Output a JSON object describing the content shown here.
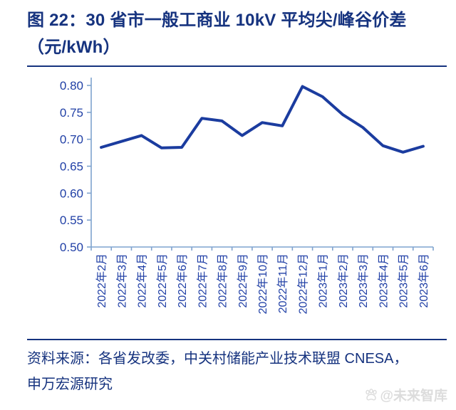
{
  "header": {
    "title_lines": [
      "图 22：30 省市一般工商业 10kV 平均尖/峰谷价差",
      "（元/kWh）"
    ]
  },
  "chart_data": {
    "type": "line",
    "title": "30 省市一般工商业 10kV 平均尖/峰谷价差（元/kWh）",
    "categories": [
      "2022年2月",
      "2022年3月",
      "2022年4月",
      "2022年5月",
      "2022年6月",
      "2022年7月",
      "2022年8月",
      "2022年9月",
      "2022年10月",
      "2022年11月",
      "2022年12月",
      "2023年1月",
      "2023年2月",
      "2023年3月",
      "2023年4月",
      "2023年5月",
      "2023年6月"
    ],
    "values": [
      0.685,
      0.696,
      0.707,
      0.684,
      0.685,
      0.739,
      0.734,
      0.707,
      0.731,
      0.725,
      0.798,
      0.779,
      0.746,
      0.722,
      0.688,
      0.676,
      0.687
    ],
    "xlabel": "",
    "ylabel": "元/kWh",
    "ylim": [
      0.5,
      0.8
    ],
    "yticks": [
      0.5,
      0.55,
      0.6,
      0.65,
      0.7,
      0.75,
      0.8
    ],
    "ytick_labels": [
      "0.50",
      "0.55",
      "0.60",
      "0.65",
      "0.70",
      "0.75",
      "0.80"
    ],
    "grid": false,
    "legend_position": "none",
    "line_color": "#1B3C9F",
    "axis_color": "#7FA3CF",
    "tick_label_color": "#2140A6"
  },
  "footer": {
    "source_lines": [
      "资料来源：各省发改委，中关村储能产业技术联盟 CNESA，",
      "申万宏源研究"
    ],
    "watermark": "@未来智库"
  }
}
